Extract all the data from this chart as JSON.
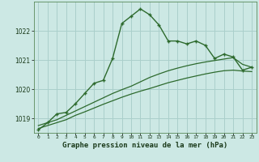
{
  "title": "Graphe pression niveau de la mer (hPa)",
  "background_color": "#cce8e4",
  "grid_color": "#aacfcb",
  "line_color": "#2d6a2d",
  "x_hours": [
    0,
    1,
    2,
    3,
    4,
    5,
    6,
    7,
    8,
    9,
    10,
    11,
    12,
    13,
    14,
    15,
    16,
    17,
    18,
    19,
    20,
    21,
    22,
    23
  ],
  "line1": [
    1018.6,
    1018.85,
    1019.15,
    1019.2,
    1019.5,
    1019.85,
    1020.2,
    1020.3,
    1021.05,
    1022.25,
    1022.5,
    1022.75,
    1022.55,
    1022.2,
    1021.65,
    1021.65,
    1021.55,
    1021.65,
    1021.5,
    1021.05,
    1021.2,
    1021.1,
    1020.65,
    1020.75
  ],
  "line2": [
    1018.75,
    1018.85,
    1018.95,
    1019.1,
    1019.25,
    1019.4,
    1019.55,
    1019.7,
    1019.85,
    1019.98,
    1020.1,
    1020.25,
    1020.4,
    1020.52,
    1020.63,
    1020.72,
    1020.8,
    1020.87,
    1020.93,
    1020.98,
    1021.03,
    1021.08,
    1020.85,
    1020.75
  ],
  "line3": [
    1018.65,
    1018.75,
    1018.85,
    1018.95,
    1019.1,
    1019.22,
    1019.35,
    1019.48,
    1019.6,
    1019.72,
    1019.83,
    1019.93,
    1020.02,
    1020.12,
    1020.22,
    1020.3,
    1020.38,
    1020.45,
    1020.52,
    1020.58,
    1020.63,
    1020.65,
    1020.62,
    1020.6
  ],
  "ylim": [
    1018.5,
    1023.0
  ],
  "yticks": [
    1019,
    1020,
    1021,
    1022
  ],
  "title_fontsize": 6.5
}
